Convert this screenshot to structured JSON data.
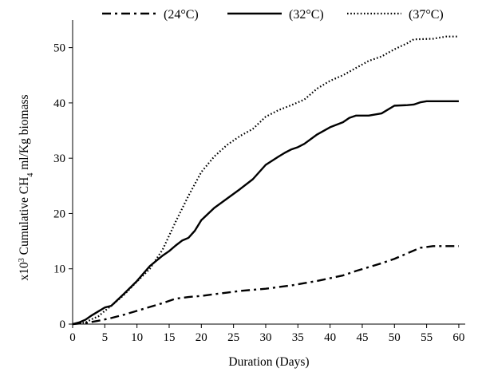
{
  "chart_data": {
    "type": "line",
    "title": "",
    "xlabel": "Duration (Days)",
    "ylabel": {
      "prefix": "x10",
      "prefix_sup": "3",
      "main": " Cumulative CH",
      "sub": "4",
      "suffix": " ml/Kg biomass"
    },
    "xlim": [
      0,
      61
    ],
    "ylim": [
      0,
      55
    ],
    "xticks": [
      0,
      5,
      10,
      15,
      20,
      25,
      30,
      35,
      40,
      45,
      50,
      55,
      60
    ],
    "yticks": [
      0,
      10,
      20,
      30,
      40,
      50
    ],
    "grid": false,
    "legend_position": "top",
    "series": [
      {
        "name": "(24°C)",
        "line_style": "dash-dot",
        "color": "#000000",
        "points": [
          [
            0,
            0
          ],
          [
            2,
            0.2
          ],
          [
            4,
            0.6
          ],
          [
            6,
            1.1
          ],
          [
            8,
            1.7
          ],
          [
            10,
            2.4
          ],
          [
            12,
            3.1
          ],
          [
            14,
            3.8
          ],
          [
            16,
            4.6
          ],
          [
            18,
            4.9
          ],
          [
            20,
            5.1
          ],
          [
            22,
            5.4
          ],
          [
            24,
            5.7
          ],
          [
            26,
            6.0
          ],
          [
            28,
            6.2
          ],
          [
            30,
            6.4
          ],
          [
            32,
            6.7
          ],
          [
            34,
            7.0
          ],
          [
            36,
            7.4
          ],
          [
            38,
            7.8
          ],
          [
            40,
            8.3
          ],
          [
            42,
            8.8
          ],
          [
            44,
            9.6
          ],
          [
            46,
            10.3
          ],
          [
            48,
            11.0
          ],
          [
            50,
            11.8
          ],
          [
            52,
            12.8
          ],
          [
            54,
            13.8
          ],
          [
            56,
            14.1
          ],
          [
            58,
            14.1
          ],
          [
            60,
            14.1
          ]
        ]
      },
      {
        "name": "(32°C)",
        "line_style": "solid",
        "color": "#000000",
        "points": [
          [
            0,
            0
          ],
          [
            1,
            0.3
          ],
          [
            2,
            0.8
          ],
          [
            3,
            1.6
          ],
          [
            4,
            2.3
          ],
          [
            5,
            3.0
          ],
          [
            6,
            3.3
          ],
          [
            8,
            5.5
          ],
          [
            10,
            7.8
          ],
          [
            12,
            10.5
          ],
          [
            14,
            12.4
          ],
          [
            15,
            13.2
          ],
          [
            16,
            14.2
          ],
          [
            17,
            15.1
          ],
          [
            18,
            15.6
          ],
          [
            19,
            16.9
          ],
          [
            20,
            18.8
          ],
          [
            22,
            21.0
          ],
          [
            24,
            22.7
          ],
          [
            26,
            24.4
          ],
          [
            28,
            26.2
          ],
          [
            30,
            28.8
          ],
          [
            32,
            30.3
          ],
          [
            33,
            31.0
          ],
          [
            34,
            31.6
          ],
          [
            35,
            32.0
          ],
          [
            36,
            32.6
          ],
          [
            38,
            34.3
          ],
          [
            40,
            35.6
          ],
          [
            42,
            36.5
          ],
          [
            43,
            37.3
          ],
          [
            44,
            37.7
          ],
          [
            46,
            37.7
          ],
          [
            48,
            38.1
          ],
          [
            50,
            39.5
          ],
          [
            52,
            39.6
          ],
          [
            53,
            39.7
          ],
          [
            54,
            40.1
          ],
          [
            55,
            40.3
          ],
          [
            60,
            40.3
          ]
        ]
      },
      {
        "name": "(37°C)",
        "line_style": "dotted",
        "color": "#000000",
        "points": [
          [
            0,
            0
          ],
          [
            2,
            0.3
          ],
          [
            3,
            0.9
          ],
          [
            4,
            1.4
          ],
          [
            5,
            2.4
          ],
          [
            6,
            3.3
          ],
          [
            8,
            5.3
          ],
          [
            10,
            7.7
          ],
          [
            12,
            10.0
          ],
          [
            14,
            13.5
          ],
          [
            16,
            18.5
          ],
          [
            18,
            23.2
          ],
          [
            20,
            27.5
          ],
          [
            22,
            30.3
          ],
          [
            24,
            32.4
          ],
          [
            26,
            34.0
          ],
          [
            28,
            35.3
          ],
          [
            30,
            37.5
          ],
          [
            32,
            38.7
          ],
          [
            34,
            39.6
          ],
          [
            36,
            40.6
          ],
          [
            38,
            42.6
          ],
          [
            40,
            44.0
          ],
          [
            42,
            45.0
          ],
          [
            44,
            46.3
          ],
          [
            46,
            47.6
          ],
          [
            48,
            48.4
          ],
          [
            50,
            49.7
          ],
          [
            52,
            50.8
          ],
          [
            53,
            51.5
          ],
          [
            56,
            51.6
          ],
          [
            58,
            52.0
          ],
          [
            60,
            52.0
          ]
        ]
      }
    ]
  }
}
